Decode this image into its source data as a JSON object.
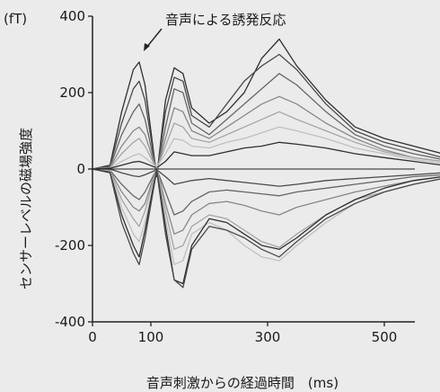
{
  "chart_data": {
    "type": "line",
    "unit_label": "(fT)",
    "ylabel": "センサーレベルの磁場強度",
    "xlabel": "音声刺激からの経過時間　(ms)",
    "annotation": "音声による誘発反応",
    "xlim": [
      0,
      650
    ],
    "ylim": [
      -400,
      400
    ],
    "xticks": [
      0,
      100,
      300,
      500
    ],
    "yticks": [
      400,
      200,
      0,
      -200,
      -400
    ],
    "grid": false,
    "line_colors": [
      "#2f2f2f",
      "#4a4a4a",
      "#666666",
      "#888888",
      "#a5a5a5",
      "#c0c0c0"
    ],
    "sample_x": [
      0,
      30,
      50,
      70,
      80,
      90,
      110,
      125,
      140,
      155,
      170,
      200,
      230,
      260,
      290,
      320,
      350,
      400,
      450,
      500,
      550,
      600,
      650
    ],
    "series": [
      {
        "values": [
          0,
          10,
          150,
          260,
          280,
          220,
          -20,
          180,
          265,
          250,
          160,
          120,
          150,
          200,
          290,
          340,
          270,
          180,
          110,
          80,
          60,
          40,
          20
        ]
      },
      {
        "values": [
          0,
          8,
          120,
          210,
          230,
          180,
          -15,
          150,
          240,
          230,
          140,
          110,
          170,
          230,
          270,
          300,
          260,
          170,
          100,
          70,
          50,
          30,
          15
        ]
      },
      {
        "values": [
          0,
          5,
          90,
          150,
          170,
          130,
          -10,
          110,
          210,
          200,
          120,
          90,
          130,
          170,
          210,
          250,
          220,
          150,
          90,
          60,
          40,
          25,
          10
        ]
      },
      {
        "values": [
          0,
          4,
          60,
          100,
          110,
          90,
          -5,
          80,
          160,
          150,
          100,
          80,
          110,
          140,
          170,
          190,
          170,
          120,
          80,
          50,
          30,
          20,
          10
        ]
      },
      {
        "values": [
          0,
          3,
          40,
          70,
          80,
          60,
          0,
          60,
          120,
          110,
          80,
          70,
          90,
          110,
          130,
          150,
          130,
          100,
          70,
          45,
          30,
          20,
          10
        ]
      },
      {
        "values": [
          0,
          2,
          20,
          35,
          40,
          30,
          5,
          40,
          80,
          75,
          60,
          55,
          70,
          80,
          95,
          110,
          100,
          80,
          55,
          40,
          25,
          15,
          5
        ]
      },
      {
        "values": [
          0,
          2,
          10,
          18,
          20,
          15,
          3,
          20,
          45,
          40,
          35,
          35,
          45,
          55,
          60,
          70,
          65,
          55,
          40,
          30,
          20,
          10,
          5
        ]
      },
      {
        "values": [
          0,
          0,
          -10,
          -18,
          -20,
          -15,
          -2,
          -20,
          -40,
          -35,
          -30,
          -25,
          -30,
          -35,
          -40,
          -45,
          -40,
          -30,
          -25,
          -20,
          -15,
          -10,
          -5
        ]
      },
      {
        "values": [
          0,
          -3,
          -40,
          -70,
          -80,
          -60,
          0,
          -60,
          -120,
          -110,
          -85,
          -60,
          -55,
          -60,
          -65,
          -70,
          -60,
          -50,
          -40,
          -30,
          -20,
          -15,
          -10
        ]
      },
      {
        "values": [
          0,
          -4,
          -60,
          -100,
          -110,
          -90,
          5,
          -90,
          -170,
          -160,
          -120,
          -90,
          -85,
          -95,
          -110,
          -120,
          -100,
          -80,
          -60,
          -45,
          -30,
          -20,
          -10
        ]
      },
      {
        "values": [
          0,
          -5,
          -80,
          -130,
          -150,
          -110,
          5,
          -110,
          -210,
          -200,
          -150,
          -120,
          -130,
          -160,
          -190,
          -205,
          -170,
          -120,
          -80,
          -60,
          -40,
          -25,
          -10
        ]
      },
      {
        "values": [
          0,
          -6,
          -100,
          -170,
          -190,
          -140,
          0,
          -130,
          -250,
          -240,
          -170,
          -140,
          -160,
          -200,
          -230,
          -240,
          -200,
          -140,
          -90,
          -60,
          -40,
          -25,
          -10
        ]
      },
      {
        "values": [
          0,
          -8,
          -120,
          -200,
          -230,
          -160,
          0,
          -150,
          -290,
          -300,
          -200,
          -130,
          -140,
          -170,
          -200,
          -210,
          -180,
          -120,
          -80,
          -50,
          -30,
          -20,
          -10
        ]
      },
      {
        "values": [
          0,
          -10,
          -140,
          -220,
          -250,
          -180,
          -5,
          -170,
          -290,
          -310,
          -210,
          -150,
          -160,
          -180,
          -210,
          -230,
          -190,
          -130,
          -90,
          -60,
          -40,
          -25,
          -10
        ]
      }
    ]
  }
}
